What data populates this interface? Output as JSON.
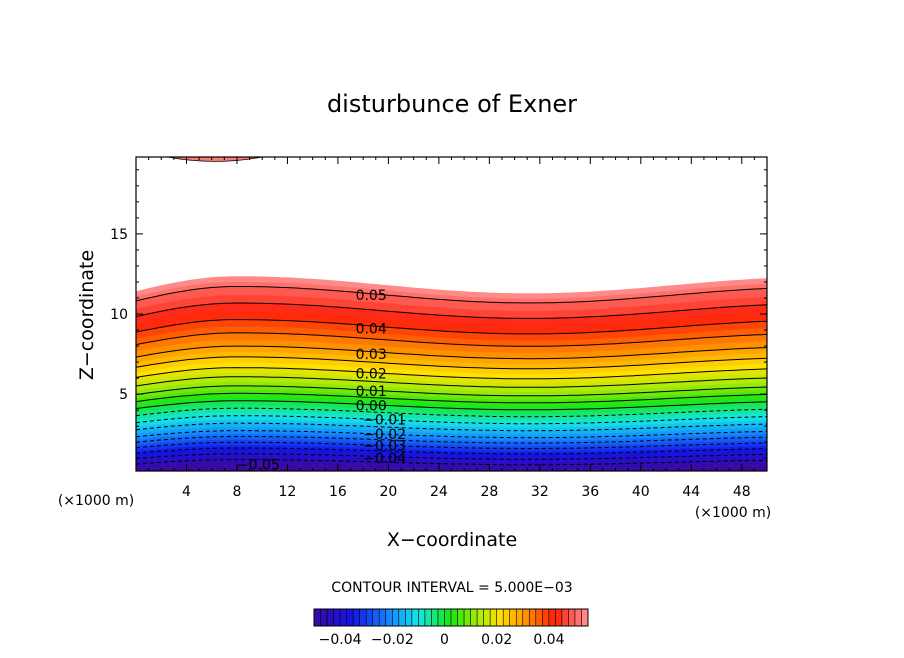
{
  "chart_data": {
    "type": "contour",
    "title": "disturbunce of Exner",
    "xlabel": "X−coordinate",
    "ylabel": "Z−coordinate",
    "x_unit_left": "(×1000 m)",
    "x_unit_right": "(×1000 m)",
    "xlim": [
      0,
      50
    ],
    "ylim": [
      0.2,
      19.8
    ],
    "xticks": [
      4,
      8,
      12,
      16,
      20,
      24,
      28,
      32,
      36,
      40,
      44,
      48
    ],
    "yticks": [
      5,
      10,
      15
    ],
    "contour_interval_text": "CONTOUR INTERVAL = 5.000E−03",
    "contour_interval": 0.005,
    "value_range": [
      -0.05,
      0.055
    ],
    "levels_solid": [
      0.0,
      0.005,
      0.01,
      0.015,
      0.02,
      0.025,
      0.03,
      0.035,
      0.04,
      0.045,
      0.05
    ],
    "levels_dashed": [
      -0.005,
      -0.01,
      -0.015,
      -0.02,
      -0.025,
      -0.03,
      -0.035,
      -0.04,
      -0.045
    ],
    "level_labels": [
      {
        "text": "0.05",
        "x": 17.4,
        "z": 11.2
      },
      {
        "text": "0.04",
        "x": 17.4,
        "z": 9.1
      },
      {
        "text": "0.03",
        "x": 17.4,
        "z": 7.5
      },
      {
        "text": "0.02",
        "x": 17.4,
        "z": 6.3
      },
      {
        "text": "0.01",
        "x": 17.4,
        "z": 5.2
      },
      {
        "text": "0.00",
        "x": 17.4,
        "z": 4.3
      },
      {
        "text": "−0.01",
        "x": 18.0,
        "z": 3.4
      },
      {
        "text": "−0.02",
        "x": 18.0,
        "z": 2.5
      },
      {
        "text": "−0.03",
        "x": 18.0,
        "z": 1.8
      },
      {
        "text": "−0.04",
        "x": 18.0,
        "z": 1.0
      },
      {
        "text": "−0.05",
        "x": 8.0,
        "z": 0.6
      }
    ],
    "contour_shape": {
      "dip_x_km": [
        0,
        8,
        30,
        36,
        50
      ],
      "level_z_at_x0": {
        "0.055": 11.8,
        "0.05": 11.2,
        "0.04": 9.2,
        "0.03": 7.6,
        "0.02": 6.3,
        "0.01": 5.2,
        "0.0": 4.3,
        "-0.01": 3.4,
        "-0.02": 2.5,
        "-0.03": 1.8,
        "-0.04": 1.1,
        "-0.05": 0.4
      }
    },
    "top_patch": {
      "x_range": [
        2.5,
        10
      ],
      "z_top": 19.8,
      "z_bottom": 19.5
    },
    "colorbar": {
      "ticks": [
        "−0.04",
        "−0.02",
        "0",
        "0.02",
        "0.04"
      ],
      "tick_values": [
        -0.04,
        -0.02,
        0.0,
        0.02,
        0.04
      ],
      "range": [
        -0.05,
        0.055
      ]
    },
    "colors": {
      "scheme": "rainbow",
      "low": "#3a0aa0",
      "mid": "#19e60f",
      "high": "#ff1e0a",
      "peak": "#ff8f8f"
    }
  }
}
